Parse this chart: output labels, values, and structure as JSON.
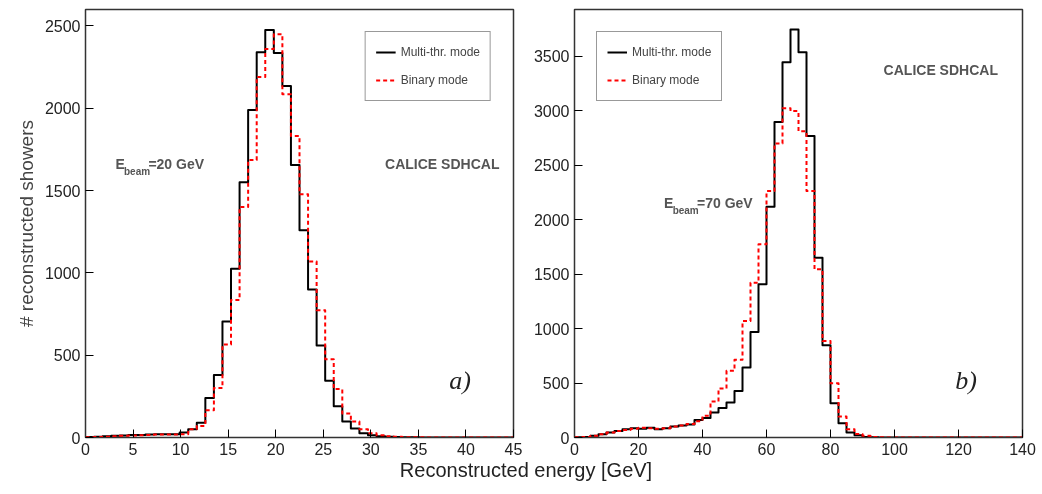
{
  "chart_data": [
    {
      "type": "histogram",
      "ylabel": "# reconstructed showers",
      "xlabel": "Reconstructed energy [GeV]",
      "bins": [
        0,
        0.9,
        1.8,
        2.7,
        3.6,
        4.5,
        5.4,
        6.3,
        7.2,
        8.1,
        9,
        9.9,
        10.8,
        11.7,
        12.6,
        13.5,
        14.4,
        15.3,
        16.2,
        17.1,
        18,
        18.9,
        19.8,
        20.7,
        21.6,
        22.5,
        23.4,
        24.3,
        25.2,
        26.1,
        27,
        27.9,
        28.8,
        29.7,
        30.6,
        31.5,
        32.4,
        33.3,
        34.2,
        35.1,
        36,
        36.9,
        37.8,
        38.7,
        39.6,
        40.5,
        41.4,
        42.3,
        43.2,
        44.1,
        45
      ],
      "series": [
        {
          "name": "Multi-thr. mode",
          "color": "#000000",
          "line_style": "solid",
          "values": [
            3,
            5,
            8,
            10,
            12,
            15,
            15,
            18,
            20,
            20,
            20,
            30,
            50,
            90,
            240,
            380,
            705,
            1025,
            1550,
            1990,
            2340,
            2475,
            2335,
            2135,
            1656,
            1259,
            899,
            559,
            344,
            190,
            97,
            55,
            26,
            14,
            8,
            5,
            3,
            2,
            1,
            0,
            0,
            0,
            0,
            0,
            0,
            0,
            0,
            0,
            0,
            0
          ]
        },
        {
          "name": "Binary mode",
          "color": "#ff0000",
          "line_style": "dashed",
          "values": [
            2,
            3,
            5,
            8,
            10,
            12,
            14,
            15,
            18,
            18,
            18,
            20,
            50,
            70,
            165,
            300,
            565,
            835,
            1400,
            1685,
            2190,
            2360,
            2450,
            2085,
            1832,
            1478,
            1069,
            773,
            476,
            294,
            146,
            97,
            50,
            26,
            14,
            8,
            4,
            2,
            1,
            1,
            0,
            0,
            0,
            0,
            0,
            0,
            0,
            0,
            0,
            0
          ]
        }
      ],
      "xlim": [
        0,
        45
      ],
      "ylim": [
        0,
        2600
      ],
      "xticks": [
        0,
        5,
        10,
        15,
        20,
        25,
        30,
        35,
        40,
        45
      ],
      "yticks": [
        0,
        500,
        1000,
        1500,
        2000,
        2500
      ],
      "grid": false,
      "legend": "top right",
      "annotations": [
        "E$_{beam}$=20 GeV",
        "CALICE SDHCAL",
        "a)"
      ]
    },
    {
      "type": "histogram",
      "bins": [
        0,
        2.5,
        5,
        7.5,
        10,
        12.5,
        15,
        17.5,
        20,
        22.5,
        25,
        27.5,
        30,
        32.5,
        35,
        37.5,
        40,
        42.5,
        45,
        47.5,
        50,
        52.5,
        55,
        57.5,
        60,
        62.5,
        65,
        67.5,
        70,
        72.5,
        75,
        77.5,
        80,
        82.5,
        85,
        87.5,
        90,
        92.5,
        95,
        97.5,
        100,
        102.5,
        105,
        107.5,
        110,
        112.5,
        115,
        117.5,
        120,
        122.5,
        125,
        127.5,
        130,
        132.5,
        135,
        137.5,
        140
      ],
      "series": [
        {
          "name": "Multi-thr. mode",
          "color": "#000000",
          "line_style": "solid",
          "values": [
            2,
            5,
            15,
            30,
            45,
            60,
            75,
            85,
            80,
            90,
            75,
            85,
            100,
            110,
            120,
            160,
            180,
            230,
            270,
            321,
            428,
            642,
            969,
            1407,
            2119,
            2896,
            3446,
            3746,
            3537,
            2768,
            1651,
            847,
            315,
            131,
            46,
            21,
            5,
            2,
            0,
            0,
            0,
            0,
            0,
            0,
            0,
            0,
            0,
            0,
            0,
            0,
            0,
            0,
            0,
            0,
            0,
            0
          ]
        },
        {
          "name": "Binary mode",
          "color": "#ff0000",
          "line_style": "dashed",
          "values": [
            2,
            5,
            15,
            30,
            45,
            60,
            70,
            80,
            90,
            85,
            80,
            85,
            100,
            110,
            125,
            150,
            200,
            330,
            450,
            612,
            713,
            1070,
            1422,
            1774,
            2263,
            2700,
            3024,
            2997,
            2813,
            2263,
            1544,
            887,
            498,
            193,
            76,
            31,
            15,
            5,
            2,
            0,
            0,
            0,
            0,
            0,
            0,
            0,
            0,
            0,
            0,
            0,
            0,
            0,
            0,
            0,
            0,
            0
          ]
        }
      ],
      "xlim": [
        0,
        140
      ],
      "ylim": [
        0,
        3930
      ],
      "xticks": [
        0,
        20,
        40,
        60,
        80,
        100,
        120,
        140
      ],
      "yticks": [
        0,
        500,
        1000,
        1500,
        2000,
        2500,
        3000,
        3500
      ],
      "grid": false,
      "legend": "top left",
      "annotations": [
        "E$_{beam}$=70 GeV",
        "CALICE SDHCAL",
        "b)"
      ]
    }
  ]
}
